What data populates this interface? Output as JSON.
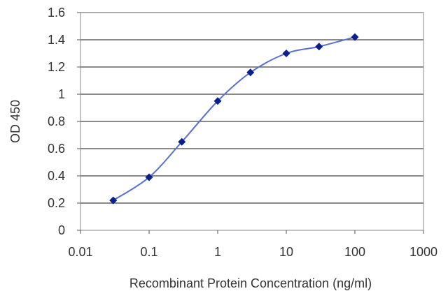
{
  "chart_data": {
    "type": "line",
    "xlabel": "Recombinant Protein Concentration (ng/ml)",
    "ylabel": "OD 450",
    "xscale": "log",
    "xlim": [
      0.01,
      1000
    ],
    "ylim": [
      0,
      1.6
    ],
    "xticks": [
      0.01,
      0.1,
      1,
      10,
      100,
      1000
    ],
    "xtick_labels": [
      "0.01",
      "0.1",
      "1",
      "10",
      "100",
      "1000"
    ],
    "yticks": [
      0,
      0.2,
      0.4,
      0.6,
      0.8,
      1,
      1.2,
      1.4,
      1.6
    ],
    "ytick_labels": [
      "0",
      "0.2",
      "0.4",
      "0.6",
      "0.8",
      "1",
      "1.2",
      "1.4",
      "1.6"
    ],
    "grid": "horizontal",
    "series": [
      {
        "x": [
          0.03,
          0.1,
          0.3,
          1,
          3,
          10,
          30,
          100
        ],
        "y": [
          0.22,
          0.39,
          0.65,
          0.95,
          1.16,
          1.3,
          1.35,
          1.42
        ]
      }
    ],
    "colors": {
      "line": "#5a6fd0",
      "marker": "#0a1e8c",
      "grid": "#444444",
      "plot_border": "#888888"
    }
  }
}
